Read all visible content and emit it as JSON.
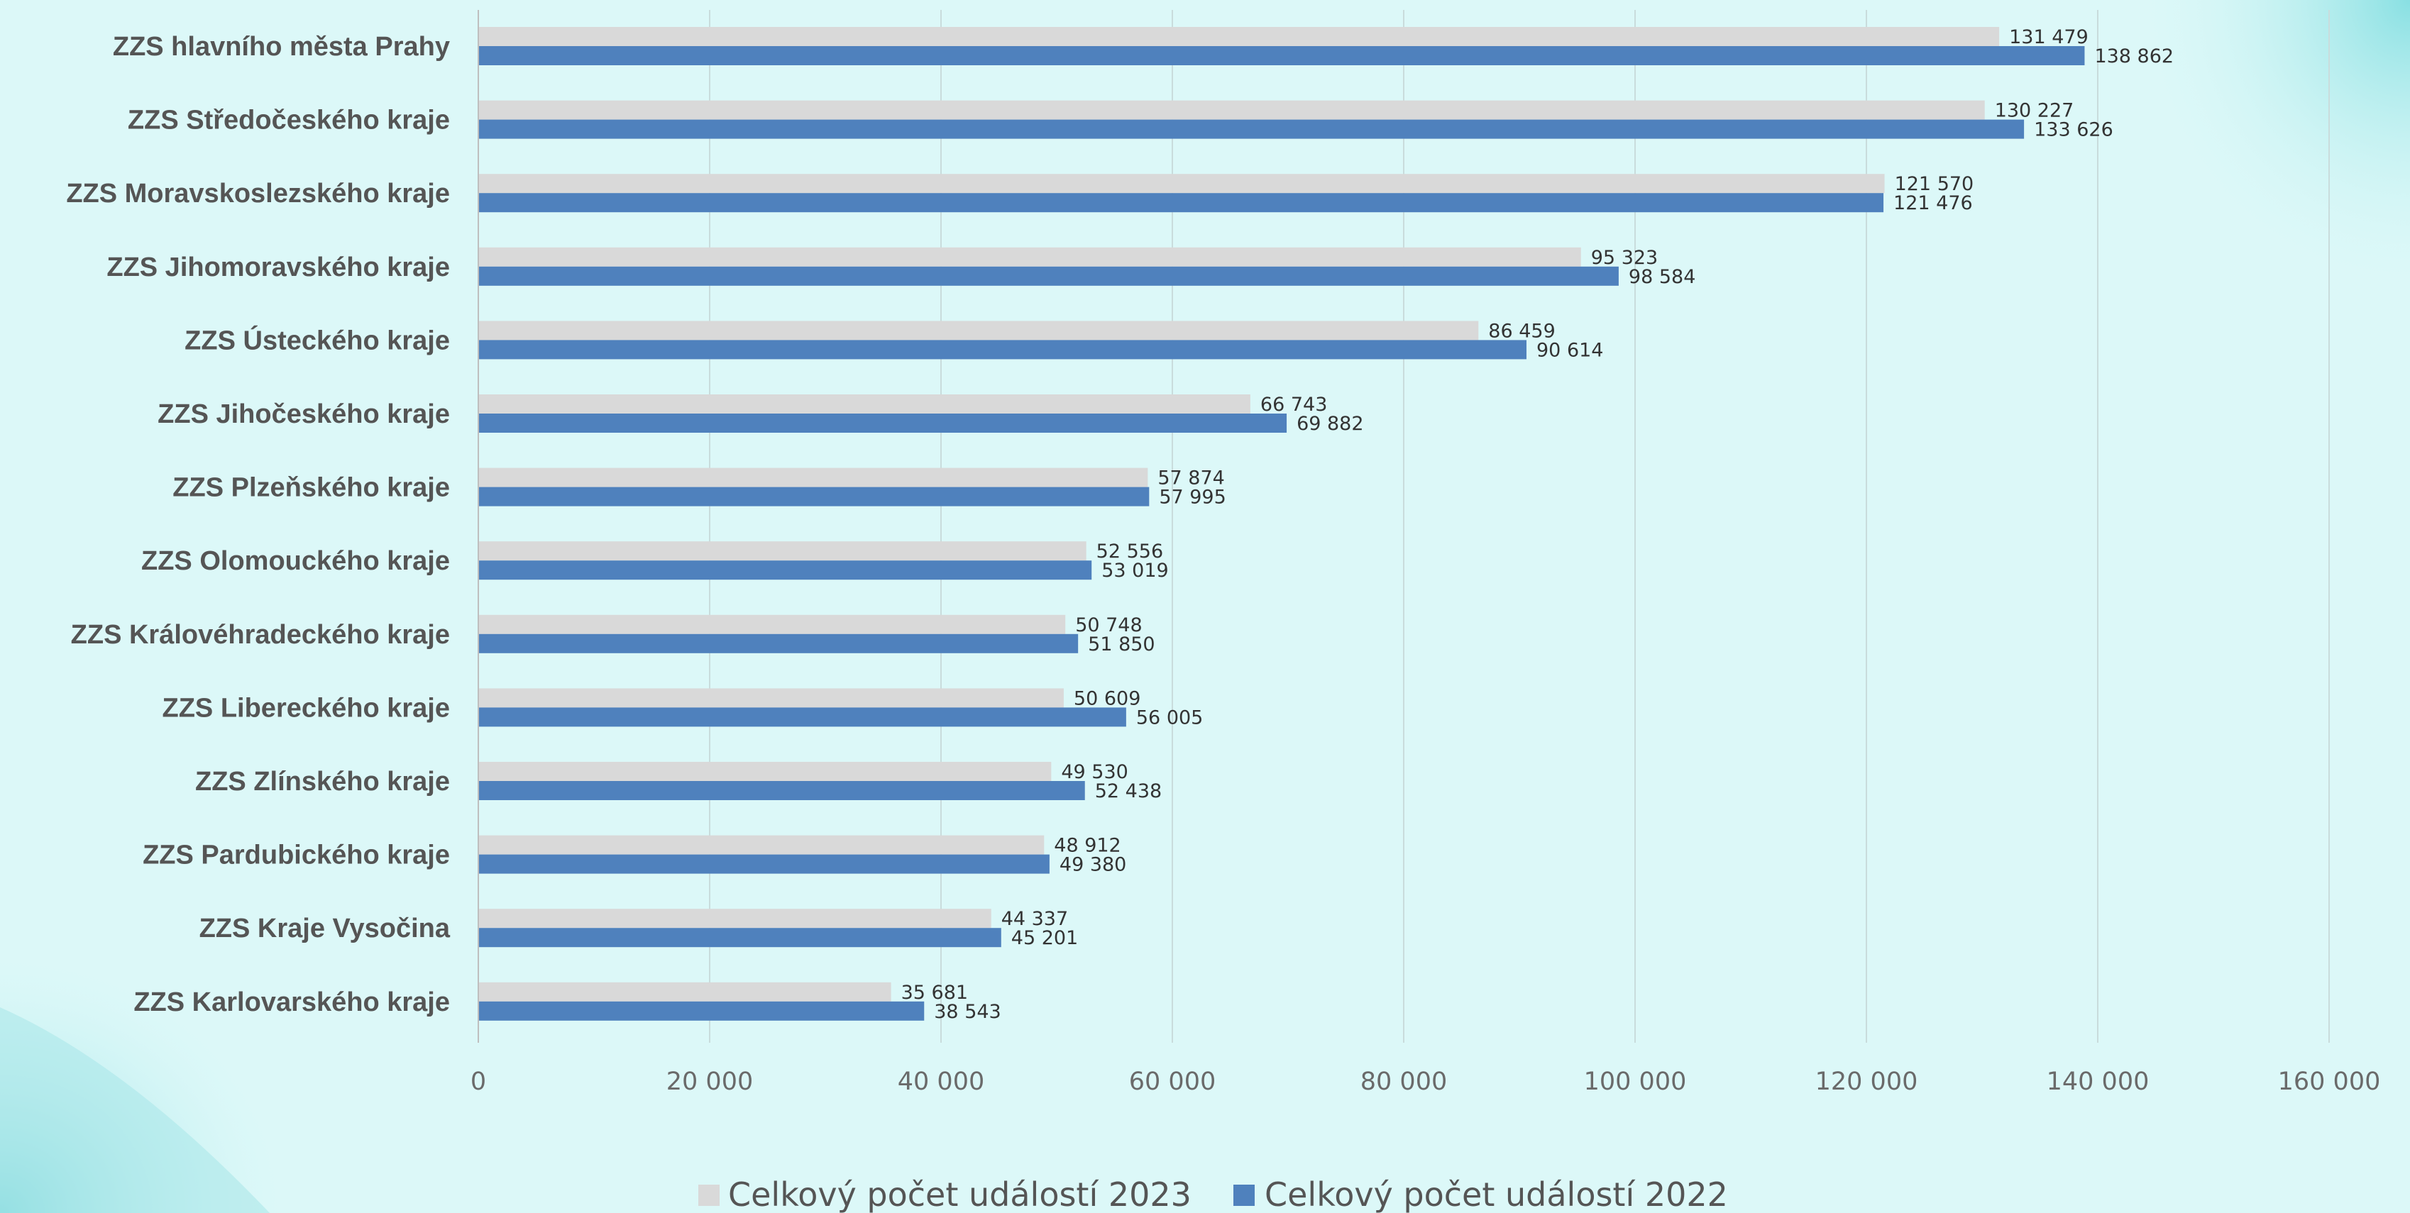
{
  "chart_data": {
    "type": "bar",
    "orientation": "horizontal",
    "categories": [
      "ZZS hlavního města Prahy",
      "ZZS Středočeského kraje",
      "ZZS Moravskoslezského kraje",
      "ZZS Jihomoravského kraje",
      "ZZS Ústeckého kraje",
      "ZZS Jihočeského kraje",
      "ZZS Plzeňského kraje",
      "ZZS Olomouckého kraje",
      "ZZS Královéhradeckého kraje",
      "ZZS Libereckého kraje",
      "ZZS Zlínského kraje",
      "ZZS Pardubického kraje",
      "ZZS Kraje Vysočina",
      "ZZS Karlovarského kraje"
    ],
    "series": [
      {
        "name": "Celkový počet událostí 2023",
        "color": "#d9d9d9",
        "values": [
          131479,
          130227,
          121570,
          95323,
          86459,
          66743,
          57874,
          52556,
          50748,
          50609,
          49530,
          48912,
          44337,
          35681
        ],
        "labels": [
          "131 479",
          "130 227",
          "121 570",
          "95 323",
          "86 459",
          "66 743",
          "57 874",
          "52 556",
          "50 748",
          "50 609",
          "49 530",
          "48 912",
          "44 337",
          "35 681"
        ]
      },
      {
        "name": "Celkový počet událostí 2022",
        "color": "#4f81bd",
        "values": [
          138862,
          133626,
          121476,
          98584,
          90614,
          69882,
          57995,
          53019,
          51850,
          56005,
          52438,
          49380,
          45201,
          38543
        ],
        "labels": [
          "138 862",
          "133 626",
          "121 476",
          "98 584",
          "90 614",
          "69 882",
          "57 995",
          "53 019",
          "51 850",
          "56 005",
          "52 438",
          "49 380",
          "45 201",
          "38 543"
        ]
      }
    ],
    "xlim": [
      0,
      160000
    ],
    "x_ticks": [
      0,
      20000,
      40000,
      60000,
      80000,
      100000,
      120000,
      140000,
      160000
    ],
    "x_tick_labels": [
      "0",
      "20 000",
      "40 000",
      "60 000",
      "80 000",
      "100 000",
      "120 000",
      "140 000",
      "160 000"
    ],
    "grid": "vertical",
    "legend_position": "bottom",
    "title": "",
    "xlabel": "",
    "ylabel": ""
  }
}
